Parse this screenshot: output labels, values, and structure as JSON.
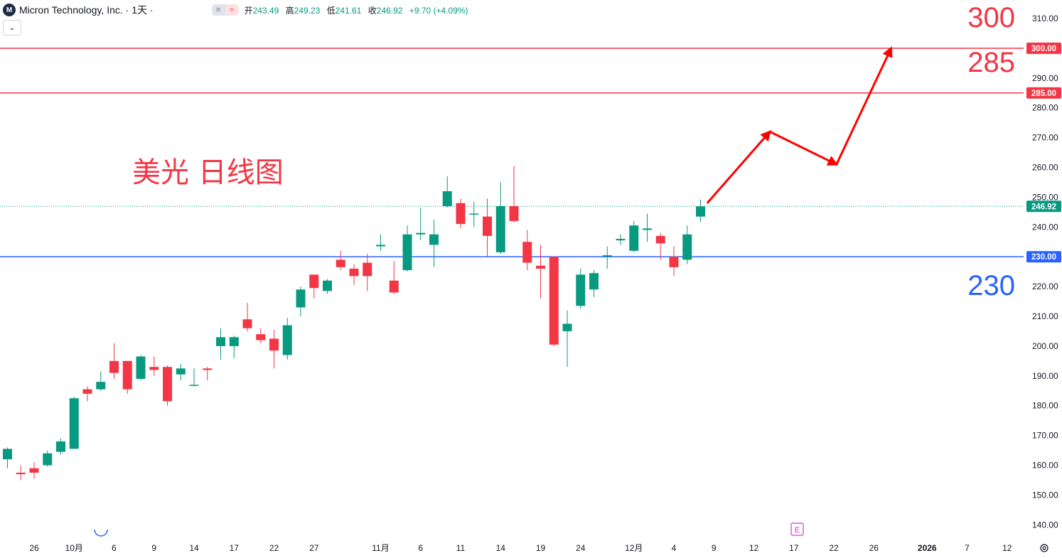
{
  "header": {
    "symbol_title": "Micron Technology, Inc. · 1天 ·",
    "logo_letter": "M",
    "pill_left": "≡",
    "pill_right": "≈",
    "ohlc": {
      "open_label": "开",
      "open": "243.49",
      "high_label": "高",
      "high": "249.23",
      "low_label": "低",
      "low": "241.61",
      "close_label": "收",
      "close": "246.92",
      "change": "+9.70 (+4.09%)"
    }
  },
  "collapse_button": "⌄",
  "annotation_title": "美光 日线图",
  "level_labels": [
    {
      "text": "300",
      "price": 310.5,
      "color": "#f23645"
    },
    {
      "text": "285",
      "price": 295.5,
      "color": "#f23645"
    },
    {
      "text": "230",
      "price": 220.5,
      "color": "#2962ff"
    }
  ],
  "earnings_marker": "E",
  "settings_icon": "gear-icon",
  "colors": {
    "up": "#089981",
    "down": "#f23645",
    "resistance": "#f23645",
    "support": "#2962ff",
    "current_price": "#089981",
    "arrow": "#ff0000",
    "grid_text": "#131722"
  },
  "chart_data": {
    "type": "candlestick",
    "title": "",
    "xlabel": "",
    "ylabel": "",
    "ylim": [
      133,
      315
    ],
    "y_ticks": [
      140,
      150,
      160,
      170,
      180,
      190,
      200,
      210,
      220,
      230,
      240,
      250,
      260,
      270,
      280,
      290,
      300,
      310
    ],
    "y_tick_labels": [
      "140.00",
      "150.00",
      "160.00",
      "170.00",
      "180.00",
      "190.00",
      "200.00",
      "210.00",
      "220.00",
      "230.00",
      "240.00",
      "250.00",
      "260.00",
      "270.00",
      "280.00",
      "290.00",
      "300.00",
      "310.00"
    ],
    "x_tick_labels": [
      "26",
      "10月",
      "6",
      "9",
      "14",
      "17",
      "22",
      "27",
      "11月",
      "6",
      "11",
      "14",
      "19",
      "24",
      "12月",
      "4",
      "9",
      "12",
      "17",
      "22",
      "26",
      "2026",
      "7",
      "12"
    ],
    "x_tick_slots": [
      2,
      5,
      8,
      11,
      14,
      17,
      20,
      23,
      28,
      31,
      34,
      37,
      40,
      43,
      47,
      50,
      53,
      56,
      59,
      62,
      65,
      69,
      72,
      75
    ],
    "candles": [
      {
        "slot": 0,
        "open": 162,
        "high": 166,
        "low": 159,
        "close": 165.5
      },
      {
        "slot": 1,
        "open": 157.5,
        "high": 160,
        "low": 155,
        "close": 157
      },
      {
        "slot": 2,
        "open": 159,
        "high": 161,
        "low": 155.5,
        "close": 157.5
      },
      {
        "slot": 3,
        "open": 160,
        "high": 165,
        "low": 159.5,
        "close": 164
      },
      {
        "slot": 4,
        "open": 164.5,
        "high": 169,
        "low": 163.5,
        "close": 168
      },
      {
        "slot": 5,
        "open": 165.5,
        "high": 183,
        "low": 165.5,
        "close": 182.5
      },
      {
        "slot": 6,
        "open": 185.5,
        "high": 186.5,
        "low": 181.5,
        "close": 184
      },
      {
        "slot": 7,
        "open": 185.5,
        "high": 191.5,
        "low": 185,
        "close": 188
      },
      {
        "slot": 8,
        "open": 195,
        "high": 201,
        "low": 189,
        "close": 191
      },
      {
        "slot": 9,
        "open": 195,
        "high": 195,
        "low": 184,
        "close": 185.5
      },
      {
        "slot": 10,
        "open": 189,
        "high": 197,
        "low": 188.5,
        "close": 196.5
      },
      {
        "slot": 11,
        "open": 193,
        "high": 196.5,
        "low": 190,
        "close": 192
      },
      {
        "slot": 12,
        "open": 193,
        "high": 193.5,
        "low": 180,
        "close": 181.5
      },
      {
        "slot": 13,
        "open": 190.5,
        "high": 194,
        "low": 188.5,
        "close": 192.5
      },
      {
        "slot": 14,
        "open": 187,
        "high": 192.5,
        "low": 186.5,
        "close": 187
      },
      {
        "slot": 15,
        "open": 192.5,
        "high": 193,
        "low": 188.5,
        "close": 192
      },
      {
        "slot": 16,
        "open": 200,
        "high": 206,
        "low": 195.5,
        "close": 203
      },
      {
        "slot": 17,
        "open": 200,
        "high": 203.5,
        "low": 196,
        "close": 203
      },
      {
        "slot": 18,
        "open": 209,
        "high": 214.5,
        "low": 205,
        "close": 206
      },
      {
        "slot": 19,
        "open": 204,
        "high": 206,
        "low": 201,
        "close": 202
      },
      {
        "slot": 20,
        "open": 202.5,
        "high": 205.5,
        "low": 192.5,
        "close": 198.5
      },
      {
        "slot": 21,
        "open": 197,
        "high": 209.5,
        "low": 195.5,
        "close": 207
      },
      {
        "slot": 22,
        "open": 213,
        "high": 220,
        "low": 210,
        "close": 219
      },
      {
        "slot": 23,
        "open": 224,
        "high": 224,
        "low": 216,
        "close": 219.5
      },
      {
        "slot": 24,
        "open": 218.5,
        "high": 222.5,
        "low": 217.5,
        "close": 222
      },
      {
        "slot": 25,
        "open": 229,
        "high": 232,
        "low": 225.5,
        "close": 226.5
      },
      {
        "slot": 26,
        "open": 226,
        "high": 227.5,
        "low": 220.5,
        "close": 223.5
      },
      {
        "slot": 27,
        "open": 228,
        "high": 231,
        "low": 218.5,
        "close": 223.5
      },
      {
        "slot": 28,
        "open": 233.5,
        "high": 237.5,
        "low": 232,
        "close": 234
      },
      {
        "slot": 29,
        "open": 222,
        "high": 228.5,
        "low": 217.5,
        "close": 218
      },
      {
        "slot": 30,
        "open": 225.5,
        "high": 240.5,
        "low": 225,
        "close": 237.5
      },
      {
        "slot": 31,
        "open": 237.5,
        "high": 246.5,
        "low": 235.5,
        "close": 238
      },
      {
        "slot": 32,
        "open": 234,
        "high": 242.5,
        "low": 226.5,
        "close": 237.5
      },
      {
        "slot": 33,
        "open": 247,
        "high": 257,
        "low": 246.5,
        "close": 252
      },
      {
        "slot": 34,
        "open": 248,
        "high": 249.5,
        "low": 239.5,
        "close": 241
      },
      {
        "slot": 35,
        "open": 244.5,
        "high": 248.5,
        "low": 240,
        "close": 244.5
      },
      {
        "slot": 36,
        "open": 243.5,
        "high": 249.5,
        "low": 230,
        "close": 237
      },
      {
        "slot": 37,
        "open": 231.5,
        "high": 255,
        "low": 231,
        "close": 247
      },
      {
        "slot": 38,
        "open": 247,
        "high": 260.5,
        "low": 241.5,
        "close": 242
      },
      {
        "slot": 39,
        "open": 235,
        "high": 239,
        "low": 225.5,
        "close": 228
      },
      {
        "slot": 40,
        "open": 227,
        "high": 234,
        "low": 216,
        "close": 226
      },
      {
        "slot": 41,
        "open": 230,
        "high": 230,
        "low": 200,
        "close": 200.5
      },
      {
        "slot": 42,
        "open": 205,
        "high": 212,
        "low": 193,
        "close": 207.5
      },
      {
        "slot": 43,
        "open": 213.5,
        "high": 226,
        "low": 212.5,
        "close": 224
      },
      {
        "slot": 44,
        "open": 219,
        "high": 225.5,
        "low": 216.5,
        "close": 224.5
      },
      {
        "slot": 45,
        "open": 230,
        "high": 233.5,
        "low": 226,
        "close": 230.5
      },
      {
        "slot": 46,
        "open": 235.5,
        "high": 237.5,
        "low": 234,
        "close": 236
      },
      {
        "slot": 47,
        "open": 232,
        "high": 242,
        "low": 231.5,
        "close": 240.5
      },
      {
        "slot": 48,
        "open": 239,
        "high": 244.5,
        "low": 235,
        "close": 239.5
      },
      {
        "slot": 49,
        "open": 237,
        "high": 238,
        "low": 229,
        "close": 234.5
      },
      {
        "slot": 50,
        "open": 230,
        "high": 233.5,
        "low": 223.5,
        "close": 226.5
      },
      {
        "slot": 51,
        "open": 229,
        "high": 240.5,
        "low": 227.5,
        "close": 237.5
      },
      {
        "slot": 52,
        "open": 243.49,
        "high": 249.23,
        "low": 241.61,
        "close": 246.92
      }
    ],
    "horizontal_levels": [
      {
        "price": 300,
        "label": "300.00",
        "color": "#f23645",
        "style": "solid"
      },
      {
        "price": 285,
        "label": "285.00",
        "color": "#f23645",
        "style": "solid"
      },
      {
        "price": 230,
        "label": "230.00",
        "color": "#2962ff",
        "style": "solid"
      },
      {
        "price": 246.92,
        "label": "246.92",
        "color": "#089981",
        "style": "dotted"
      }
    ],
    "projection_path": [
      {
        "slot": 52.5,
        "price": 248
      },
      {
        "slot": 57.2,
        "price": 272
      },
      {
        "slot": 62.2,
        "price": 261
      },
      {
        "slot": 66.3,
        "price": 300
      }
    ]
  }
}
